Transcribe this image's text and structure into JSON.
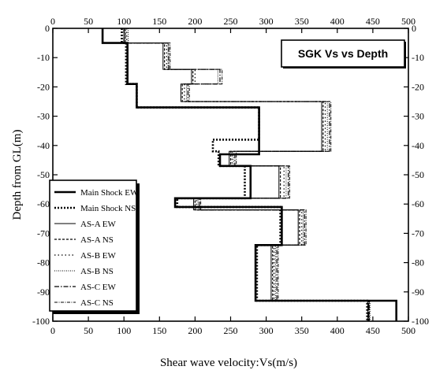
{
  "chart_data": {
    "type": "line",
    "title": "SGK Vs vs Depth",
    "xlabel": "Shear wave velocity:Vs(m/s)",
    "ylabel": "Depth from GL(m)",
    "xlim": [
      0,
      500
    ],
    "ylim": [
      -100,
      0
    ],
    "x_ticks": [
      0,
      50,
      100,
      150,
      200,
      250,
      300,
      350,
      400,
      450,
      500
    ],
    "y_ticks": [
      0,
      -10,
      -20,
      -30,
      -40,
      -50,
      -60,
      -70,
      -80,
      -90,
      -100
    ],
    "grid": false,
    "legend_position": "lower-left",
    "series": [
      {
        "name": "Main Shock EW",
        "style": "solid-bold",
        "color": "#000000",
        "steps": [
          [
            0,
            -5,
            70
          ],
          [
            -5,
            -19,
            105
          ],
          [
            -19,
            -27,
            118
          ],
          [
            -27,
            -43,
            290
          ],
          [
            -43,
            -47,
            235
          ],
          [
            -47,
            -58,
            278
          ],
          [
            -58,
            -61,
            172
          ],
          [
            -61,
            -74,
            322
          ],
          [
            -74,
            -93,
            285
          ],
          [
            -93,
            -100,
            483
          ]
        ]
      },
      {
        "name": "Main Shock NS",
        "style": "dotted-bold",
        "color": "#000000",
        "steps": [
          [
            0,
            -5,
            97
          ],
          [
            -5,
            -19,
            103
          ],
          [
            -19,
            -27,
            118
          ],
          [
            -27,
            -38,
            290
          ],
          [
            -38,
            -42,
            225
          ],
          [
            -42,
            -47,
            233
          ],
          [
            -47,
            -58,
            270
          ],
          [
            -58,
            -61,
            175
          ],
          [
            -61,
            -74,
            320
          ],
          [
            -74,
            -93,
            287
          ],
          [
            -93,
            -100,
            442
          ]
        ]
      },
      {
        "name": "AS-A EW",
        "style": "solid-thin",
        "color": "#000000",
        "steps": [
          [
            0,
            -5,
            100
          ],
          [
            -5,
            -14,
            155
          ],
          [
            -14,
            -19,
            195
          ],
          [
            -19,
            -25,
            180
          ],
          [
            -25,
            -42,
            378
          ],
          [
            -42,
            -47,
            248
          ],
          [
            -47,
            -58,
            318
          ],
          [
            -58,
            -62,
            198
          ],
          [
            -62,
            -74,
            345
          ],
          [
            -74,
            -93,
            307
          ],
          [
            -93,
            -100,
            443
          ]
        ]
      },
      {
        "name": "AS-A NS",
        "style": "dashed-fine",
        "color": "#000000",
        "steps": [
          [
            0,
            -5,
            102
          ],
          [
            -5,
            -14,
            157
          ],
          [
            -14,
            -19,
            197
          ],
          [
            -19,
            -25,
            182
          ],
          [
            -25,
            -42,
            380
          ],
          [
            -42,
            -47,
            250
          ],
          [
            -47,
            -58,
            320
          ],
          [
            -58,
            -62,
            200
          ],
          [
            -62,
            -74,
            347
          ],
          [
            -74,
            -93,
            309
          ],
          [
            -93,
            -100,
            444
          ]
        ]
      },
      {
        "name": "AS-B EW",
        "style": "dotted-sparse",
        "color": "#000000",
        "steps": [
          [
            0,
            -5,
            104
          ],
          [
            -5,
            -14,
            160
          ],
          [
            -14,
            -19,
            200
          ],
          [
            -19,
            -25,
            185
          ],
          [
            -25,
            -42,
            383
          ],
          [
            -42,
            -47,
            252
          ],
          [
            -47,
            -58,
            325
          ],
          [
            -58,
            -62,
            202
          ],
          [
            -62,
            -74,
            350
          ],
          [
            -74,
            -93,
            311
          ],
          [
            -93,
            -100,
            445
          ]
        ]
      },
      {
        "name": "AS-B NS",
        "style": "dotted-fine",
        "color": "#000000",
        "steps": [
          [
            0,
            -5,
            106
          ],
          [
            -5,
            -14,
            162
          ],
          [
            -14,
            -19,
            232
          ],
          [
            -19,
            -25,
            188
          ],
          [
            -25,
            -42,
            386
          ],
          [
            -42,
            -47,
            254
          ],
          [
            -47,
            -58,
            328
          ],
          [
            -58,
            -62,
            204
          ],
          [
            -62,
            -74,
            352
          ],
          [
            -74,
            -93,
            313
          ],
          [
            -93,
            -100,
            446
          ]
        ]
      },
      {
        "name": "AS-C EW",
        "style": "dashdot",
        "color": "#000000",
        "steps": [
          [
            0,
            -5,
            100
          ],
          [
            -5,
            -14,
            163
          ],
          [
            -14,
            -19,
            235
          ],
          [
            -19,
            -25,
            190
          ],
          [
            -25,
            -42,
            389
          ],
          [
            -42,
            -47,
            256
          ],
          [
            -47,
            -58,
            331
          ],
          [
            -58,
            -62,
            206
          ],
          [
            -62,
            -74,
            354
          ],
          [
            -74,
            -93,
            315
          ],
          [
            -93,
            -100,
            444
          ]
        ]
      },
      {
        "name": "AS-C NS",
        "style": "dashdot-fine",
        "color": "#000000",
        "steps": [
          [
            0,
            -5,
            102
          ],
          [
            -5,
            -14,
            165
          ],
          [
            -14,
            -19,
            238
          ],
          [
            -19,
            -25,
            192
          ],
          [
            -25,
            -42,
            391
          ],
          [
            -42,
            -47,
            258
          ],
          [
            -47,
            -58,
            333
          ],
          [
            -58,
            -62,
            208
          ],
          [
            -62,
            -74,
            356
          ],
          [
            -74,
            -93,
            317
          ],
          [
            -93,
            -100,
            445
          ]
        ]
      }
    ]
  }
}
